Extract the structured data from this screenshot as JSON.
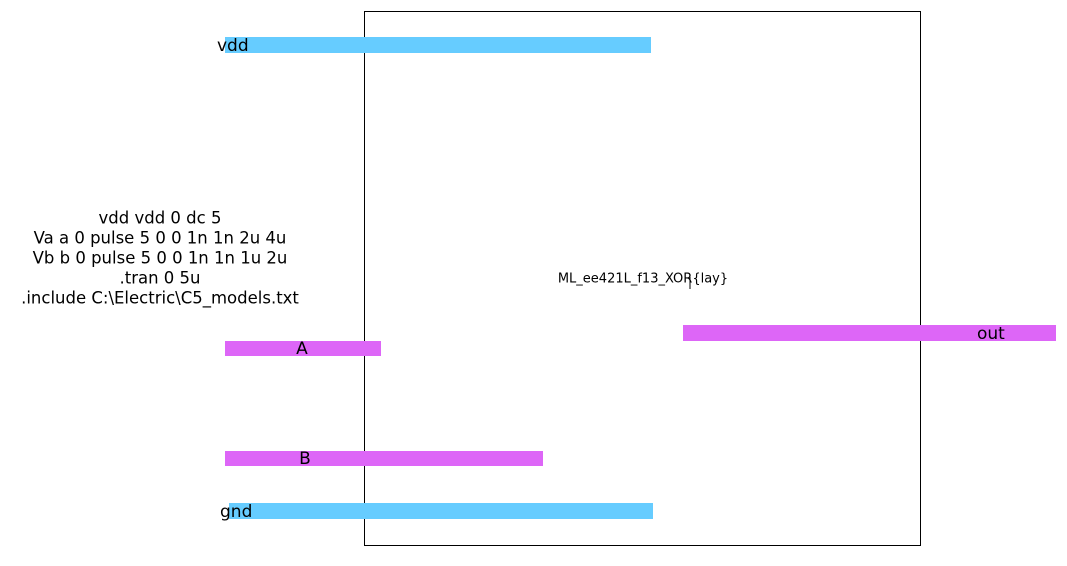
{
  "cell_name": "ML_ee421L_f13_XOR{lay}",
  "exports": {
    "vdd": "vdd",
    "gnd": "gnd",
    "a": "A",
    "b": "B",
    "out": "out"
  },
  "spice": [
    "vdd vdd 0 dc 5",
    "Va a 0 pulse 5 0 0 1n 1n 2u 4u",
    "Vb b 0 pulse 5 0 0 1n 1n 1u 2u",
    ".tran 0 5u",
    ".include C:\\Electric\\C5_models.txt"
  ]
}
